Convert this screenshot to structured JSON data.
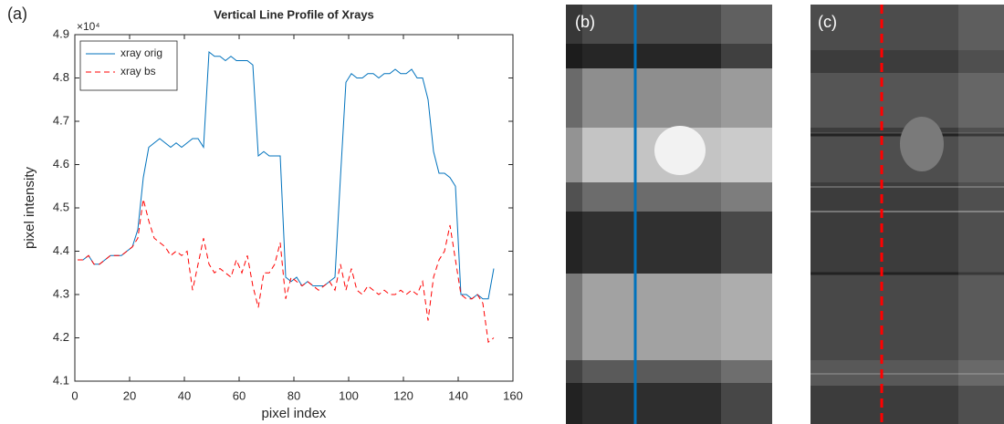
{
  "panel_labels": [
    "(a)",
    "(b)",
    "(c)"
  ],
  "chart_data": {
    "type": "line",
    "title": "Vertical Line Profile of Xrays",
    "x_label": "pixel index",
    "y_label": "pixel intensity",
    "y_multiplier_label": "×10⁴",
    "legend": "upper left",
    "grid": false,
    "xlim": [
      0,
      160
    ],
    "xticks": [
      0,
      20,
      40,
      60,
      80,
      100,
      120,
      140,
      160
    ],
    "ylim": [
      4.1,
      4.9
    ],
    "yticks": [
      4.1,
      4.2,
      4.3,
      4.4,
      4.5,
      4.6,
      4.7,
      4.8,
      4.9
    ],
    "x": [
      1,
      3,
      5,
      7,
      9,
      11,
      13,
      15,
      17,
      19,
      21,
      23,
      25,
      27,
      29,
      31,
      33,
      35,
      37,
      39,
      41,
      43,
      45,
      47,
      49,
      51,
      53,
      55,
      57,
      59,
      61,
      63,
      65,
      67,
      69,
      71,
      73,
      75,
      77,
      79,
      81,
      83,
      85,
      87,
      89,
      91,
      93,
      95,
      97,
      99,
      101,
      103,
      105,
      107,
      109,
      111,
      113,
      115,
      117,
      119,
      121,
      123,
      125,
      127,
      129,
      131,
      133,
      135,
      137,
      139,
      141,
      143,
      145,
      147,
      149,
      151,
      153
    ],
    "series": [
      {
        "name": "xray orig",
        "color": "#0072bd",
        "dash": "solid",
        "values": [
          4.38,
          4.38,
          4.39,
          4.37,
          4.37,
          4.38,
          4.39,
          4.39,
          4.39,
          4.4,
          4.41,
          4.45,
          4.57,
          4.64,
          4.65,
          4.66,
          4.65,
          4.64,
          4.65,
          4.64,
          4.65,
          4.66,
          4.66,
          4.64,
          4.86,
          4.85,
          4.85,
          4.84,
          4.85,
          4.84,
          4.84,
          4.84,
          4.83,
          4.62,
          4.63,
          4.62,
          4.62,
          4.62,
          4.34,
          4.33,
          4.34,
          4.32,
          4.33,
          4.32,
          4.32,
          4.32,
          4.33,
          4.34,
          4.57,
          4.79,
          4.81,
          4.8,
          4.8,
          4.81,
          4.81,
          4.8,
          4.81,
          4.81,
          4.82,
          4.81,
          4.81,
          4.82,
          4.8,
          4.8,
          4.75,
          4.63,
          4.58,
          4.58,
          4.57,
          4.55,
          4.3,
          4.3,
          4.29,
          4.3,
          4.29,
          4.29,
          4.36
        ]
      },
      {
        "name": "xray bs",
        "color": "#ff0000",
        "dash": "dashed",
        "values": [
          4.38,
          4.38,
          4.39,
          4.37,
          4.37,
          4.38,
          4.39,
          4.39,
          4.39,
          4.4,
          4.41,
          4.43,
          4.52,
          4.47,
          4.43,
          4.42,
          4.41,
          4.39,
          4.4,
          4.39,
          4.4,
          4.31,
          4.37,
          4.43,
          4.37,
          4.35,
          4.36,
          4.35,
          4.34,
          4.38,
          4.35,
          4.39,
          4.32,
          4.27,
          4.35,
          4.35,
          4.37,
          4.42,
          4.29,
          4.34,
          4.33,
          4.32,
          4.33,
          4.32,
          4.31,
          4.32,
          4.33,
          4.31,
          4.37,
          4.31,
          4.36,
          4.31,
          4.3,
          4.32,
          4.31,
          4.3,
          4.31,
          4.3,
          4.3,
          4.31,
          4.3,
          4.31,
          4.3,
          4.33,
          4.24,
          4.34,
          4.38,
          4.4,
          4.46,
          4.38,
          4.3,
          4.29,
          4.29,
          4.3,
          4.28,
          4.19,
          4.2
        ]
      }
    ]
  }
}
